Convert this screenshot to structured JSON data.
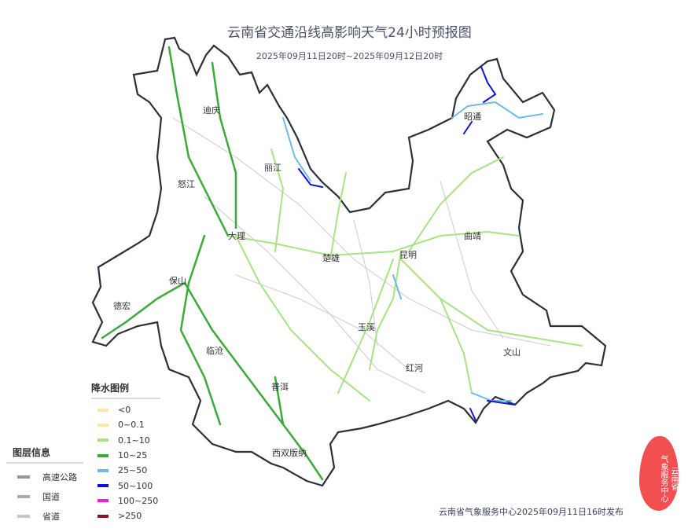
{
  "header": {
    "title": "云南省交通沿线高影响天气24小时预报图",
    "subtitle": "2025年09月11日20时~2025年09月12日20时"
  },
  "cities": [
    {
      "name": "迪庆"
    },
    {
      "name": "怒江"
    },
    {
      "name": "丽江"
    },
    {
      "name": "大理"
    },
    {
      "name": "楚雄"
    },
    {
      "name": "昆明"
    },
    {
      "name": "曲靖"
    },
    {
      "name": "昭通"
    },
    {
      "name": "德宏"
    },
    {
      "name": "保山"
    },
    {
      "name": "临沧"
    },
    {
      "name": "普洱"
    },
    {
      "name": "玉溪"
    },
    {
      "name": "红河"
    },
    {
      "name": "文山"
    },
    {
      "name": "西双版纳"
    }
  ],
  "precip_legend": {
    "title": "降水图例",
    "items": [
      {
        "label": "<0",
        "color": "#fde8a8"
      },
      {
        "label": "0~0.1",
        "color": "#fde8a8"
      },
      {
        "label": "0.1~10",
        "color": "#a6e383"
      },
      {
        "label": "10~25",
        "color": "#3aab3a"
      },
      {
        "label": "25~50",
        "color": "#6cbbe6"
      },
      {
        "label": "50~100",
        "color": "#0a14d8"
      },
      {
        "label": "100~250",
        "color": "#f21ee0"
      },
      {
        "label": ">250",
        "color": "#8a1428"
      }
    ]
  },
  "layer_legend": {
    "title": "图层信息",
    "items": [
      {
        "label": "高速公路",
        "color": "#8f97a6"
      },
      {
        "label": "国道",
        "color": "#a5acb8"
      },
      {
        "label": "省道",
        "color": "#c3c8d2"
      }
    ]
  },
  "footer": "云南省气象服务中心2025年09月11日16时发布",
  "seal": "云南省气象服务中心"
}
